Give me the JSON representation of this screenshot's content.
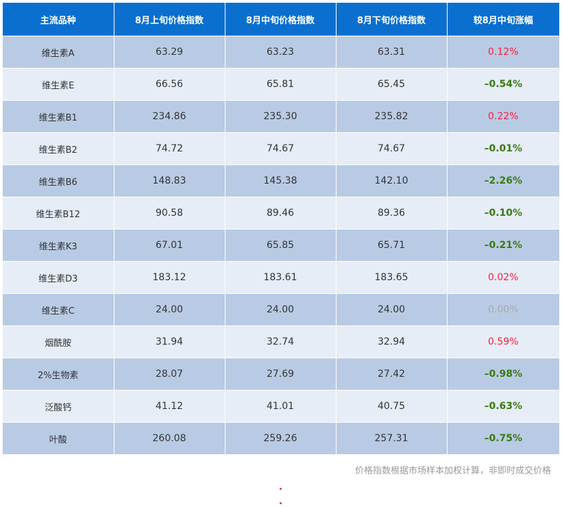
{
  "header": {
    "col1": "主流品种",
    "col2": "8月上旬价格指数",
    "col3": "8月中旬价格指数",
    "col4": "8月下旬价格指数",
    "col5": "较8月中旬涨幅"
  },
  "rows": [
    {
      "name": "维生素A",
      "early": "63.29",
      "mid": "63.23",
      "late": "63.31",
      "change": "0.12%",
      "trend": "pos"
    },
    {
      "name": "维生素E",
      "early": "66.56",
      "mid": "65.81",
      "late": "65.45",
      "change": "–0.54%",
      "trend": "neg"
    },
    {
      "name": "维生素B1",
      "early": "234.86",
      "mid": "235.30",
      "late": "235.82",
      "change": "0.22%",
      "trend": "pos"
    },
    {
      "name": "维生素B2",
      "early": "74.72",
      "mid": "74.67",
      "late": "74.67",
      "change": "–0.01%",
      "trend": "neg"
    },
    {
      "name": "维生素B6",
      "early": "148.83",
      "mid": "145.38",
      "late": "142.10",
      "change": "–2.26%",
      "trend": "neg"
    },
    {
      "name": "维生素B12",
      "early": "90.58",
      "mid": "89.46",
      "late": "89.36",
      "change": "–0.10%",
      "trend": "neg"
    },
    {
      "name": "维生素K3",
      "early": "67.01",
      "mid": "65.85",
      "late": "65.71",
      "change": "–0.21%",
      "trend": "neg"
    },
    {
      "name": "维生素D3",
      "early": "183.12",
      "mid": "183.61",
      "late": "183.65",
      "change": "0.02%",
      "trend": "pos"
    },
    {
      "name": "维生素C",
      "early": "24.00",
      "mid": "24.00",
      "late": "24.00",
      "change": "0.00%",
      "trend": "zero"
    },
    {
      "name": "烟酰胺",
      "early": "31.94",
      "mid": "32.74",
      "late": "32.94",
      "change": "0.59%",
      "trend": "pos"
    },
    {
      "name": "2%生物素",
      "early": "28.07",
      "mid": "27.69",
      "late": "27.42",
      "change": "–0.98%",
      "trend": "neg"
    },
    {
      "name": "泛酸钙",
      "early": "41.12",
      "mid": "41.01",
      "late": "40.75",
      "change": "–0.63%",
      "trend": "neg"
    },
    {
      "name": "叶酸",
      "early": "260.08",
      "mid": "259.26",
      "late": "257.31",
      "change": "–0.75%",
      "trend": "neg"
    }
  ],
  "footnote": "价格指数根据市场样本加权计算，非即时成交价格",
  "colors": {
    "header_bg": "#0a6fcf",
    "row_dark": "#b9cbe4",
    "row_light": "#e6edf6",
    "positive": "#ff1a3c",
    "negative": "#3a7a12",
    "zero": "#a8a8a8"
  }
}
